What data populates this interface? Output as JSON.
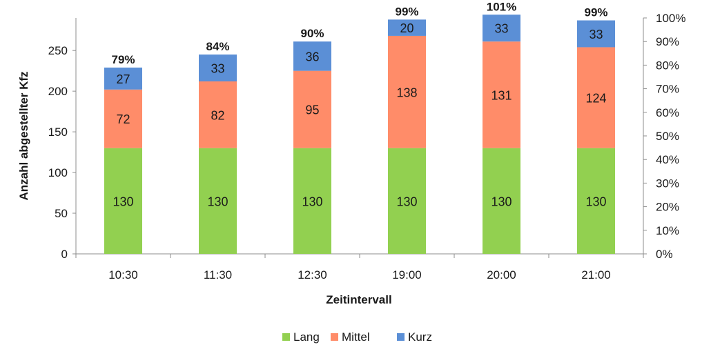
{
  "chart_data": {
    "type": "bar",
    "stacked": true,
    "categories": [
      "10:30",
      "11:30",
      "12:30",
      "19:00",
      "20:00",
      "21:00"
    ],
    "series": [
      {
        "name": "Lang",
        "color": "#92d050",
        "values": [
          130,
          130,
          130,
          130,
          130,
          130
        ]
      },
      {
        "name": "Mittel",
        "color": "#ff8c69",
        "values": [
          72,
          82,
          95,
          138,
          131,
          124
        ]
      },
      {
        "name": "Kurz",
        "color": "#5b8fd6",
        "values": [
          27,
          33,
          36,
          20,
          33,
          33
        ]
      }
    ],
    "top_labels": [
      "79%",
      "84%",
      "90%",
      "99%",
      "101%",
      "99%"
    ],
    "xlabel": "Zeitintervall",
    "ylabel": "Anzahl abgestellter Kfz",
    "ylim": [
      0,
      290
    ],
    "yticks": [
      "0",
      "50",
      "100",
      "150",
      "200",
      "250"
    ],
    "y2lim": [
      0,
      100
    ],
    "y2ticks": [
      "0%",
      "10%",
      "20%",
      "30%",
      "40%",
      "50%",
      "60%",
      "70%",
      "80%",
      "90%",
      "100%"
    ],
    "grid": false,
    "legend_position": "bottom"
  }
}
